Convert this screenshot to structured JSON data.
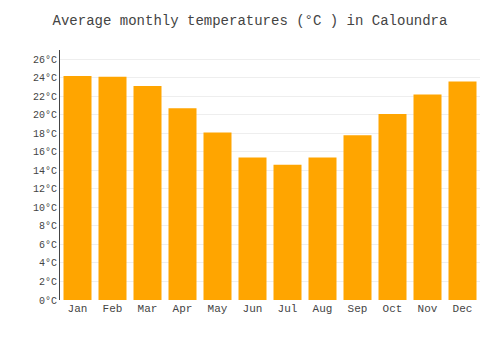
{
  "chart_data": {
    "type": "bar",
    "title": "Average monthly temperatures (°C ) in Caloundra",
    "categories": [
      "Jan",
      "Feb",
      "Mar",
      "Apr",
      "May",
      "Jun",
      "Jul",
      "Aug",
      "Sep",
      "Oct",
      "Nov",
      "Dec"
    ],
    "values": [
      24.2,
      24.1,
      23.1,
      20.7,
      18.1,
      15.4,
      14.6,
      15.4,
      17.8,
      20.1,
      22.2,
      23.6
    ],
    "color": "#FFA500",
    "ylim": [
      0,
      27
    ],
    "yticks": [
      {
        "value": 0,
        "label": "0°C"
      },
      {
        "value": 2,
        "label": "2°C"
      },
      {
        "value": 4,
        "label": "4°C"
      },
      {
        "value": 6,
        "label": "6°C"
      },
      {
        "value": 8,
        "label": "8°C"
      },
      {
        "value": 10,
        "label": "10°C"
      },
      {
        "value": 12,
        "label": "12°C"
      },
      {
        "value": 14,
        "label": "14°C"
      },
      {
        "value": 16,
        "label": "16°C"
      },
      {
        "value": 18,
        "label": "18°C"
      },
      {
        "value": 20,
        "label": "20°C"
      },
      {
        "value": 22,
        "label": "22°C"
      },
      {
        "value": 24,
        "label": "24°C"
      },
      {
        "value": 26,
        "label": "26°C"
      }
    ],
    "grid": true
  }
}
